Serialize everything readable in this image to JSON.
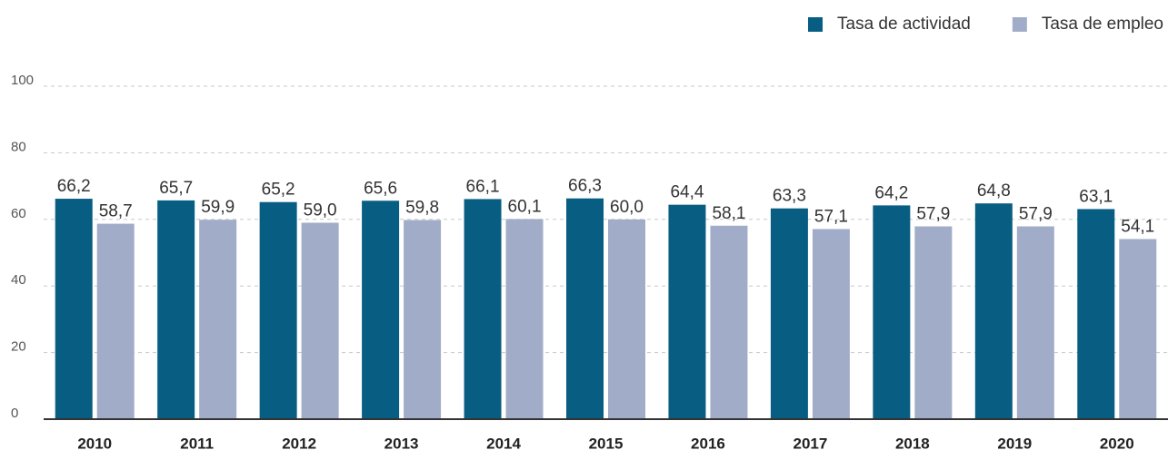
{
  "chart_data": {
    "type": "bar",
    "categories": [
      "2010",
      "2011",
      "2012",
      "2013",
      "2014",
      "2015",
      "2016",
      "2017",
      "2018",
      "2019",
      "2020"
    ],
    "series": [
      {
        "name": "Tasa de actividad",
        "color": "#085e82",
        "values": [
          66.2,
          65.7,
          65.2,
          65.6,
          66.1,
          66.3,
          64.4,
          63.3,
          64.2,
          64.8,
          63.1
        ],
        "value_labels": [
          "66,2",
          "65,7",
          "65,2",
          "65,6",
          "66,1",
          "66,3",
          "64,4",
          "63,3",
          "64,2",
          "64,8",
          "63,1"
        ]
      },
      {
        "name": "Tasa de empleo",
        "color": "#a1adc8",
        "values": [
          58.7,
          59.9,
          59.0,
          59.8,
          60.1,
          60.0,
          58.1,
          57.1,
          57.9,
          57.9,
          54.1
        ],
        "value_labels": [
          "58,7",
          "59,9",
          "59,0",
          "59,8",
          "60,1",
          "60,0",
          "58,1",
          "57,1",
          "57,9",
          "57,9",
          "54,1"
        ]
      }
    ],
    "ylim": [
      0,
      100
    ],
    "yticks": [
      0,
      20,
      40,
      60,
      80,
      100
    ],
    "grid": true,
    "legend": "top-right"
  }
}
